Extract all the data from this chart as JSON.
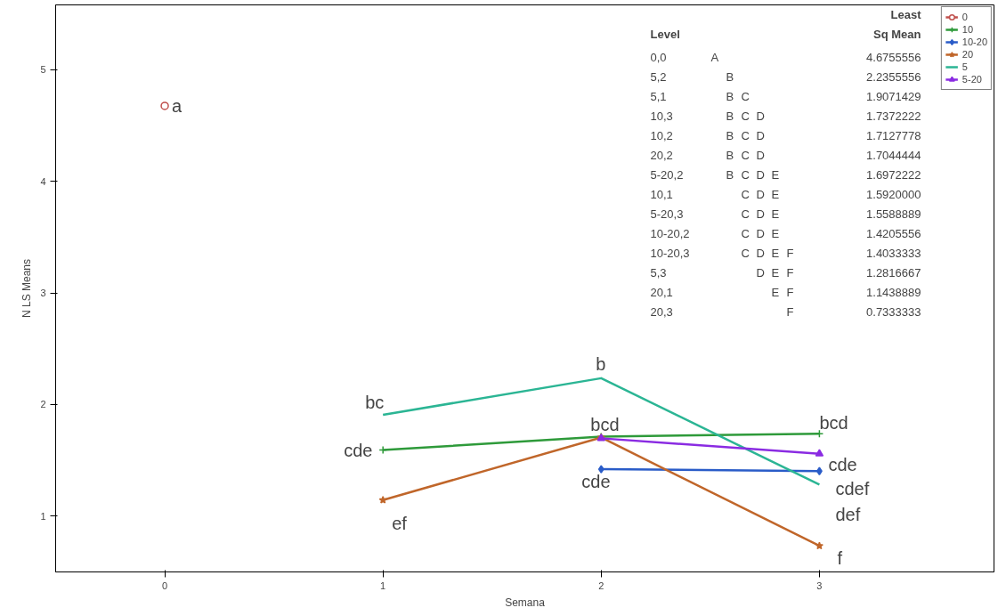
{
  "chart_data": {
    "type": "line",
    "xlabel": "Semana",
    "ylabel": "N LS Means",
    "xlim": [
      -0.5,
      3.8
    ],
    "ylim": [
      0.5,
      5.58
    ],
    "xticks": [
      0,
      1,
      2,
      3
    ],
    "yticks": [
      1,
      2,
      3,
      4,
      5
    ],
    "grid": false,
    "legend": "top right",
    "series": [
      {
        "name": "0",
        "color": "#c0504d",
        "marker": "circle",
        "x": [
          0
        ],
        "values": [
          4.6755556
        ]
      },
      {
        "name": "10",
        "color": "#2e9a3a",
        "marker": "cross",
        "x": [
          1,
          2,
          3
        ],
        "values": [
          1.592,
          1.7127778,
          1.7372222
        ]
      },
      {
        "name": "10-20",
        "color": "#2a5cc8",
        "marker": "diamond",
        "x": [
          2,
          3
        ],
        "values": [
          1.4205556,
          1.4033333
        ]
      },
      {
        "name": "20",
        "color": "#c0662a",
        "marker": "star",
        "x": [
          1,
          2,
          3
        ],
        "values": [
          1.1438889,
          1.7044444,
          0.7333333
        ]
      },
      {
        "name": "5",
        "color": "#2bb594",
        "marker": "none",
        "x": [
          1,
          2,
          3
        ],
        "values": [
          1.9071429,
          2.2355556,
          1.2816667
        ]
      },
      {
        "name": "5-20",
        "color": "#8a2be2",
        "marker": "triangle",
        "x": [
          2,
          3
        ],
        "values": [
          1.6972222,
          1.5588889
        ]
      }
    ],
    "annotations": [
      {
        "text": "a",
        "x": 0,
        "y": 4.6755556
      },
      {
        "text": "bc",
        "x": 1,
        "y": 1.9071429
      },
      {
        "text": "cde",
        "x": 1,
        "y": 1.592
      },
      {
        "text": "ef",
        "x": 1,
        "y": 1.1438889
      },
      {
        "text": "b",
        "x": 2,
        "y": 2.2355556
      },
      {
        "text": "bcd",
        "x": 2,
        "y": 1.7044444
      },
      {
        "text": "cde",
        "x": 2,
        "y": 1.4205556
      },
      {
        "text": "bcd",
        "x": 3,
        "y": 1.7372222
      },
      {
        "text": "cde",
        "x": 3,
        "y": 1.5588889
      },
      {
        "text": "cdef",
        "x": 3,
        "y": 1.4033333
      },
      {
        "text": "def",
        "x": 3,
        "y": 1.2816667
      },
      {
        "text": "f",
        "x": 3,
        "y": 0.7333333
      },
      "Least",
      "Level",
      "Sq Mean",
      "0,0 A 4.6755556",
      "5,2 B 2.2355556",
      "5,1 B C 1.9071429",
      "10,3 B C D 1.7372222",
      "10,2 B C D 1.7127778",
      "20,2 B C D 1.7044444",
      "5-20,2 B C D E 1.6972222",
      "10,1 C D E 1.5920000",
      "5-20,3 C D E 1.5588889",
      "10-20,2 C D E 1.4205556",
      "10-20,3 C D E F 1.4033333",
      "5,3 D E F 1.2816667",
      "20,1 E F 1.1438889",
      "20,3 F 0.7333333"
    ]
  }
}
